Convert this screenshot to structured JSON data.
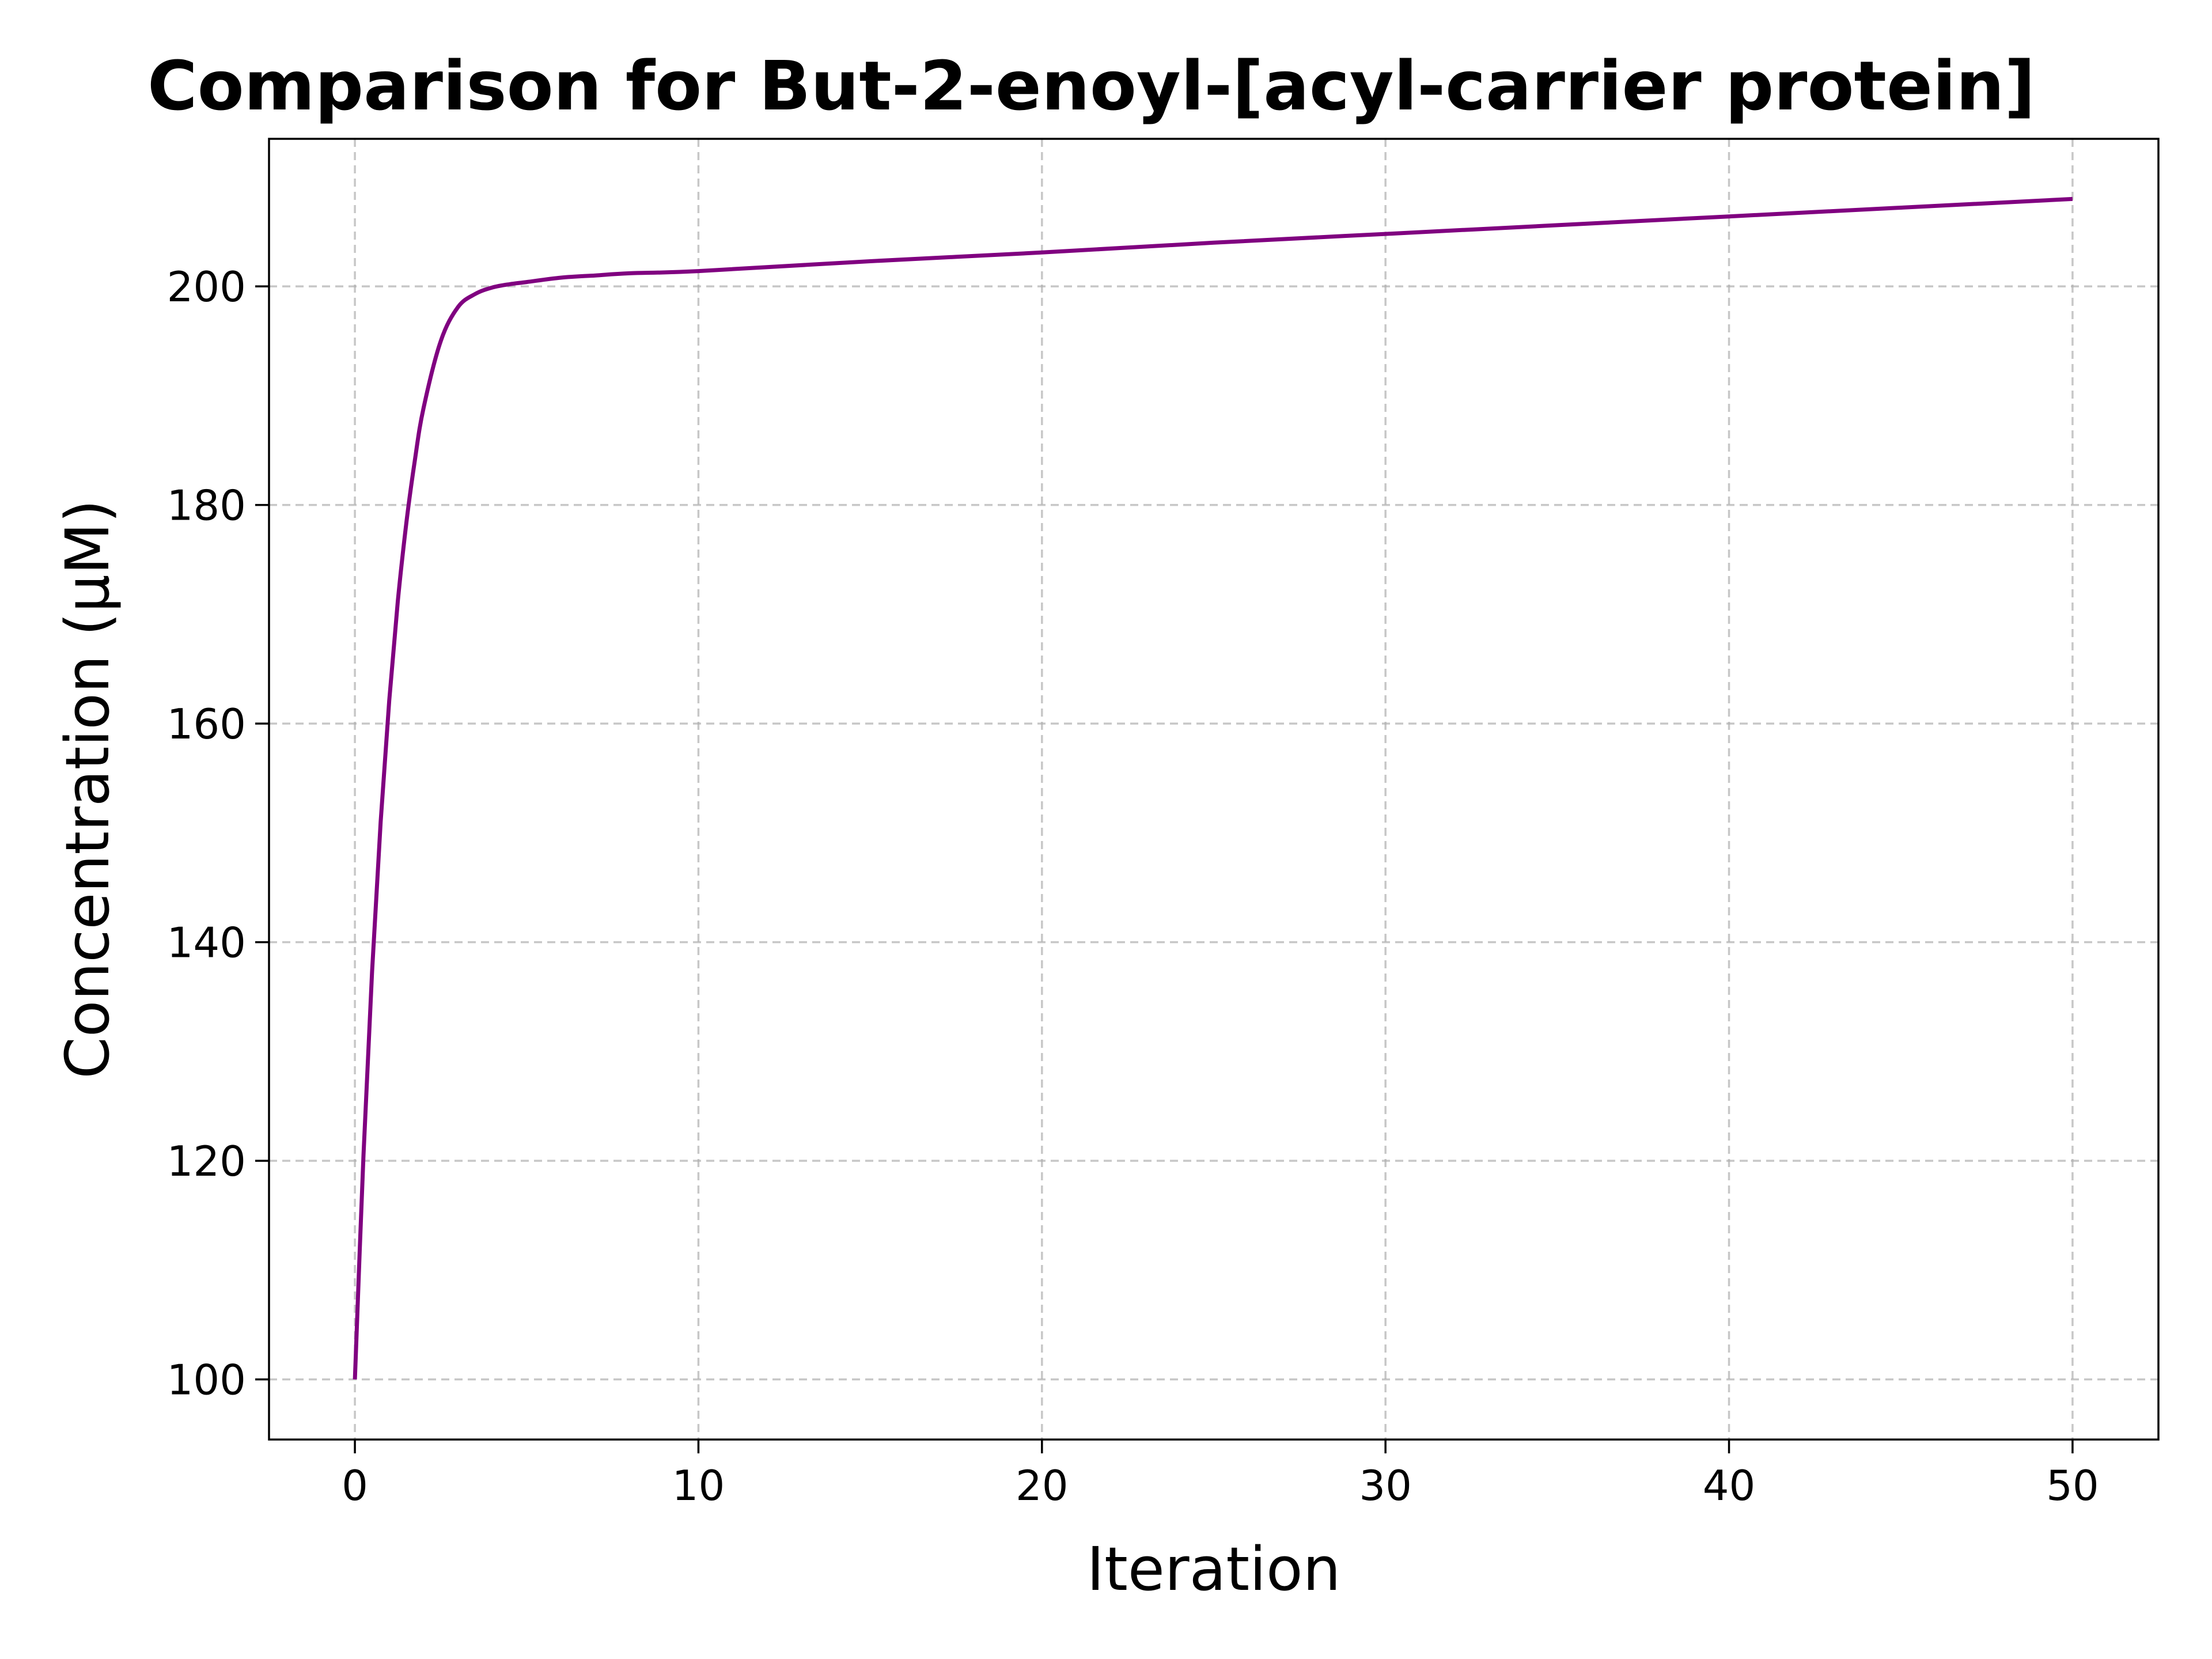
{
  "chart_data": {
    "type": "line",
    "title": "Comparison for But-2-enoyl-[acyl-carrier protein]",
    "xlabel": "Iteration",
    "ylabel": "Concentration (μM)",
    "xlim": [
      -2.5,
      52.5
    ],
    "ylim": [
      94.5,
      213.5
    ],
    "xticks": [
      0,
      10,
      20,
      30,
      40,
      50
    ],
    "yticks": [
      100,
      120,
      140,
      160,
      180,
      200
    ],
    "grid": true,
    "line_color": "#800080",
    "series": [
      {
        "x": [
          0,
          0.25,
          0.5,
          0.75,
          1,
          1.25,
          1.5,
          1.75,
          2,
          2.5,
          3,
          3.5,
          4,
          4.5,
          5,
          6,
          7,
          8,
          10,
          15,
          20,
          25,
          30,
          35,
          40,
          45,
          50
        ],
        "values": [
          100,
          120.5,
          137.3,
          151.0,
          162.1,
          171.2,
          178.4,
          184.2,
          188.9,
          195.0,
          198.1,
          199.3,
          199.9,
          200.2,
          200.4,
          200.8,
          201.0,
          201.2,
          201.4,
          202.3,
          203.1,
          204.0,
          204.8,
          205.6,
          206.4,
          207.2,
          208.0
        ]
      }
    ]
  }
}
